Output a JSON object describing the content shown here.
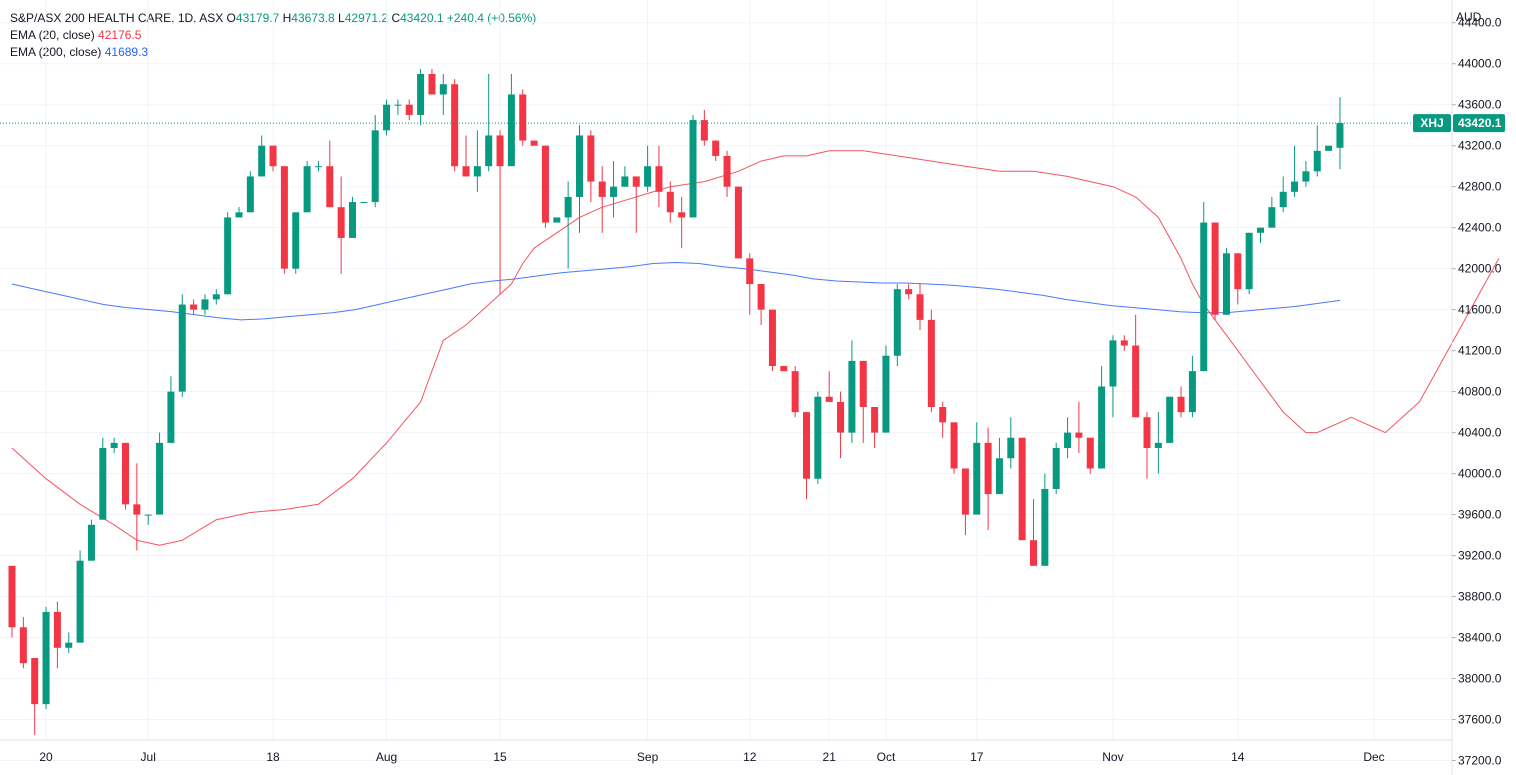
{
  "legend": {
    "symbol": "S&P/ASX 200 HEALTH CARE, 1D, ASX",
    "o_label": "O",
    "o_value": "43179.7",
    "h_label": "H",
    "h_value": "43673.8",
    "l_label": "L",
    "l_value": "42971.2",
    "c_label": "C",
    "c_value": "43420.1",
    "change": "+240.4 (+0.56%)",
    "ema20_label": "EMA (20, close)",
    "ema20_value": "42176.5",
    "ema200_label": "EMA (200, close)",
    "ema200_value": "41689.3"
  },
  "colors": {
    "up": "#089981",
    "down": "#f23645",
    "ema20": "#f23645",
    "ema200": "#2962ff",
    "grid": "#f0f3fa",
    "text": "#131722"
  },
  "chart_data": {
    "type": "candlestick",
    "currency": "AUD",
    "ticker": "XHJ",
    "last_price": 43420.1,
    "last_price_label": "43420.1",
    "ylim": [
      37000,
      44700
    ],
    "y_ticks": [
      37200,
      37600,
      38000,
      38400,
      38800,
      39200,
      39600,
      40000,
      40400,
      40800,
      41200,
      41600,
      42000,
      42400,
      42800,
      43200,
      43600,
      44000,
      44400
    ],
    "y_tick_labels": [
      "37200.0",
      "37600.0",
      "38000.0",
      "38400.0",
      "38800.0",
      "39200.0",
      "39600.0",
      "40000.0",
      "40400.0",
      "40800.0",
      "41200.0",
      "41600.0",
      "42000.0",
      "42400.0",
      "42800.0",
      "43200.0",
      "43600.0",
      "44000.0",
      "44400.0"
    ],
    "x_ticks": [
      {
        "index": 3,
        "label": "20"
      },
      {
        "index": 12,
        "label": "Jul"
      },
      {
        "index": 23,
        "label": "18"
      },
      {
        "index": 33,
        "label": "Aug"
      },
      {
        "index": 43,
        "label": "15"
      },
      {
        "index": 56,
        "label": "Sep"
      },
      {
        "index": 65,
        "label": "12"
      },
      {
        "index": 72,
        "label": "21"
      },
      {
        "index": 77,
        "label": "Oct"
      },
      {
        "index": 85,
        "label": "17"
      },
      {
        "index": 97,
        "label": "Nov"
      },
      {
        "index": 108,
        "label": "14"
      },
      {
        "index": 120,
        "label": "Dec"
      }
    ],
    "candles": [
      [
        39100,
        39100,
        38400,
        38500
      ],
      [
        38500,
        38600,
        38100,
        38150
      ],
      [
        38200,
        38200,
        37450,
        37750
      ],
      [
        37750,
        38700,
        37700,
        38650
      ],
      [
        38650,
        38750,
        38100,
        38300
      ],
      [
        38300,
        38450,
        38250,
        38350
      ],
      [
        38350,
        39250,
        38350,
        39150
      ],
      [
        39150,
        39550,
        39150,
        39500
      ],
      [
        39550,
        40350,
        39550,
        40250
      ],
      [
        40250,
        40350,
        40200,
        40300
      ],
      [
        40300,
        40300,
        39650,
        39700
      ],
      [
        39700,
        40100,
        39250,
        39600
      ],
      [
        39600,
        39600,
        39500,
        39600
      ],
      [
        39600,
        40400,
        39600,
        40300
      ],
      [
        40300,
        40950,
        40300,
        40800
      ],
      [
        40800,
        41750,
        40750,
        41650
      ],
      [
        41650,
        41700,
        41550,
        41600
      ],
      [
        41600,
        41750,
        41550,
        41700
      ],
      [
        41700,
        41800,
        41650,
        41750
      ],
      [
        41750,
        42550,
        41750,
        42500
      ],
      [
        42500,
        42600,
        42500,
        42550
      ],
      [
        42550,
        42950,
        42550,
        42900
      ],
      [
        42900,
        43300,
        42900,
        43200
      ],
      [
        43200,
        43200,
        42950,
        43000
      ],
      [
        43000,
        43000,
        41950,
        42000
      ],
      [
        42000,
        42550,
        41950,
        42550
      ],
      [
        42550,
        43050,
        42550,
        43000
      ],
      [
        43000,
        43050,
        42950,
        43000
      ],
      [
        43000,
        43250,
        42600,
        42600
      ],
      [
        42600,
        42900,
        41950,
        42300
      ],
      [
        42300,
        42700,
        42300,
        42650
      ],
      [
        42650,
        42650,
        42650,
        42650
      ],
      [
        42650,
        43500,
        42600,
        43350
      ],
      [
        43350,
        43650,
        43300,
        43600
      ],
      [
        43600,
        43650,
        43500,
        43600
      ],
      [
        43600,
        43650,
        43450,
        43500
      ],
      [
        43500,
        43950,
        43400,
        43900
      ],
      [
        43900,
        43950,
        43700,
        43700
      ],
      [
        43700,
        43900,
        43500,
        43800
      ],
      [
        43800,
        43850,
        42950,
        43000
      ],
      [
        43000,
        43300,
        42950,
        42900
      ],
      [
        42900,
        43350,
        42750,
        43000
      ],
      [
        43000,
        43900,
        42950,
        43300
      ],
      [
        43300,
        43350,
        41750,
        43000
      ],
      [
        43000,
        43900,
        43000,
        43700
      ],
      [
        43700,
        43750,
        43200,
        43250
      ],
      [
        43250,
        43250,
        43200,
        43200
      ],
      [
        43200,
        43200,
        42400,
        42450
      ],
      [
        42450,
        42500,
        42450,
        42500
      ],
      [
        42500,
        42850,
        42000,
        42700
      ],
      [
        42700,
        43400,
        42350,
        43300
      ],
      [
        43300,
        43350,
        42650,
        42850
      ],
      [
        42850,
        43000,
        42350,
        42700
      ],
      [
        42700,
        43050,
        42500,
        42800
      ],
      [
        42800,
        43000,
        42800,
        42900
      ],
      [
        42900,
        42900,
        42350,
        42800
      ],
      [
        42800,
        43200,
        42750,
        43000
      ],
      [
        43000,
        43200,
        42600,
        42750
      ],
      [
        42750,
        42850,
        42450,
        42550
      ],
      [
        42550,
        42700,
        42200,
        42500
      ],
      [
        42500,
        43500,
        42500,
        43450
      ],
      [
        43450,
        43550,
        43200,
        43250
      ],
      [
        43250,
        43250,
        43050,
        43100
      ],
      [
        43100,
        43150,
        42700,
        42800
      ],
      [
        42800,
        42800,
        42100,
        42100
      ],
      [
        42100,
        42150,
        41550,
        41850
      ],
      [
        41850,
        41850,
        41450,
        41600
      ],
      [
        41600,
        41600,
        41000,
        41050
      ],
      [
        41050,
        41050,
        41000,
        41000
      ],
      [
        41000,
        41050,
        40550,
        40600
      ],
      [
        40600,
        40600,
        39750,
        39950
      ],
      [
        39950,
        40800,
        39900,
        40750
      ],
      [
        40750,
        41000,
        40700,
        40700
      ],
      [
        40700,
        40800,
        40150,
        40400
      ],
      [
        40400,
        41300,
        40300,
        41100
      ],
      [
        41100,
        41100,
        40300,
        40650
      ],
      [
        40650,
        40650,
        40250,
        40400
      ],
      [
        40400,
        41250,
        40400,
        41150
      ],
      [
        41150,
        41850,
        41050,
        41800
      ],
      [
        41800,
        41850,
        41700,
        41750
      ],
      [
        41750,
        41850,
        41400,
        41500
      ],
      [
        41500,
        41600,
        40600,
        40650
      ],
      [
        40650,
        40700,
        40350,
        40500
      ],
      [
        40500,
        40500,
        40000,
        40050
      ],
      [
        40050,
        40050,
        39400,
        39600
      ],
      [
        39600,
        40500,
        39600,
        40300
      ],
      [
        40300,
        40450,
        39450,
        39800
      ],
      [
        39800,
        40350,
        39800,
        40150
      ],
      [
        40150,
        40550,
        40050,
        40350
      ],
      [
        40350,
        40350,
        39400,
        39350
      ],
      [
        39350,
        39750,
        39100,
        39100
      ],
      [
        39100,
        40000,
        39100,
        39850
      ],
      [
        39850,
        40300,
        39800,
        40250
      ],
      [
        40250,
        40550,
        40150,
        40400
      ],
      [
        40400,
        40700,
        40200,
        40350
      ],
      [
        40350,
        40350,
        40000,
        40050
      ],
      [
        40050,
        41050,
        40050,
        40850
      ],
      [
        40850,
        41350,
        40550,
        41300
      ],
      [
        41300,
        41350,
        41200,
        41250
      ],
      [
        41250,
        41550,
        40550,
        40550
      ],
      [
        40550,
        40600,
        39950,
        40250
      ],
      [
        40250,
        40600,
        40000,
        40300
      ],
      [
        40300,
        40750,
        40300,
        40750
      ],
      [
        40750,
        40850,
        40550,
        40600
      ],
      [
        40600,
        41150,
        40550,
        41000
      ],
      [
        41000,
        42650,
        41000,
        42450
      ],
      [
        42450,
        42450,
        41500,
        41550
      ],
      [
        41550,
        42200,
        41550,
        42150
      ],
      [
        42150,
        42150,
        41650,
        41800
      ],
      [
        41800,
        42350,
        41750,
        42350
      ],
      [
        42350,
        42400,
        42250,
        42400
      ],
      [
        42400,
        42700,
        42400,
        42600
      ],
      [
        42600,
        42900,
        42550,
        42750
      ],
      [
        42750,
        43200,
        42700,
        42850
      ],
      [
        42850,
        43050,
        42800,
        42950
      ],
      [
        42950,
        43400,
        42900,
        43150
      ],
      [
        43150,
        43150,
        43150,
        43200
      ],
      [
        43179.7,
        43673.8,
        42971.2,
        43420.1
      ]
    ],
    "ema20": [
      40250,
      39950,
      39700,
      39500,
      39350,
      39300,
      39350,
      39550,
      39620,
      39650,
      39700,
      39950,
      40300,
      40700,
      41000,
      41300,
      41450,
      41650,
      41850,
      42050,
      42200,
      42350,
      42500,
      42600,
      42700,
      42800,
      42850,
      42950,
      43050,
      43100,
      43100,
      43150,
      43150,
      43100,
      43050,
      43000,
      42950,
      42950,
      42900,
      42850,
      42800,
      42700,
      42600,
      42500,
      42300,
      42100,
      41850,
      41650,
      41500,
      41350,
      41200,
      41050,
      40900,
      40750,
      40600,
      40500,
      40400,
      40400,
      40450,
      40500,
      40550,
      40500,
      40450,
      40400,
      40500,
      40600,
      40700,
      40900,
      41100,
      41300,
      41500,
      41700,
      41900,
      42100
    ],
    "ema20_x": [
      0,
      3,
      6,
      9,
      11,
      13,
      15,
      18,
      21,
      24,
      27,
      30,
      33,
      36,
      37,
      38,
      40,
      42,
      44,
      45,
      46,
      48,
      50,
      52,
      55,
      58,
      61,
      64,
      66,
      68,
      70,
      72,
      75,
      78,
      81,
      84,
      87,
      90,
      93,
      95,
      97,
      99,
      100,
      101,
      102,
      103,
      104,
      105,
      106,
      107,
      108,
      109,
      110,
      111,
      112,
      113,
      114,
      115,
      116,
      117,
      118,
      119,
      120,
      121,
      122,
      123,
      124,
      125,
      126,
      127,
      128,
      129,
      130,
      131
    ],
    "ema200": [
      41850,
      41800,
      41750,
      41700,
      41650,
      41620,
      41600,
      41580,
      41550,
      41520,
      41500,
      41510,
      41530,
      41550,
      41570,
      41600,
      41650,
      41700,
      41750,
      41800,
      41850,
      41880,
      41900,
      41930,
      41960,
      41980,
      42000,
      42020,
      42050,
      42060,
      42050,
      42020,
      42000,
      41970,
      41940,
      41900,
      41880,
      41870,
      41860,
      41860,
      41850,
      41840,
      41820,
      41800,
      41770,
      41740,
      41700,
      41670,
      41640,
      41620,
      41600,
      41580,
      41570,
      41570,
      41590,
      41610,
      41630,
      41660,
      41690
    ]
  }
}
